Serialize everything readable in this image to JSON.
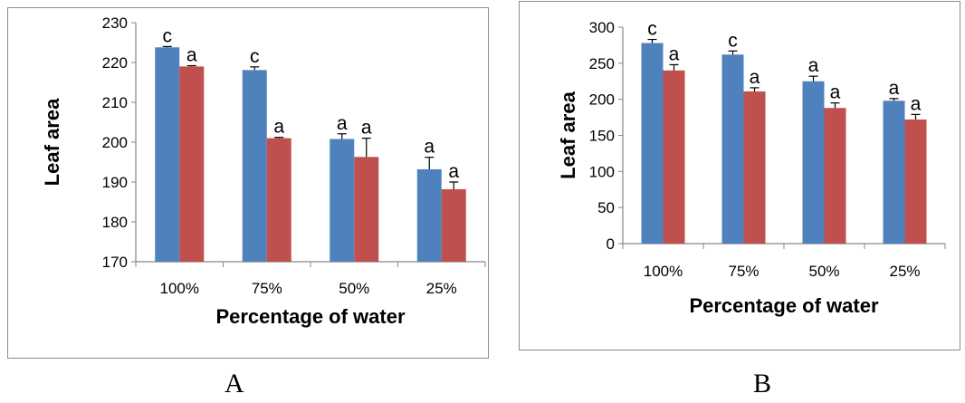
{
  "chart_data": [
    {
      "type": "bar",
      "panel": "A",
      "categories": [
        "100%",
        "75%",
        "50%",
        "25%"
      ],
      "series": [
        {
          "color": "#4f81bd",
          "values": [
            223.8,
            218.1,
            200.8,
            193.2
          ],
          "errors": [
            0.2,
            0.8,
            1.3,
            3.0
          ],
          "letters": [
            "c",
            "c",
            "a",
            "a"
          ]
        },
        {
          "color": "#c0504d",
          "values": [
            219.0,
            201.0,
            196.3,
            188.2
          ],
          "errors": [
            0.2,
            0.2,
            4.7,
            1.8
          ],
          "letters": [
            "a",
            "a",
            "a",
            "a"
          ]
        }
      ],
      "xlabel": "Percentage of water",
      "ylabel": "Leaf area",
      "ylim": [
        170,
        230
      ],
      "yticks": [
        "170",
        "180",
        "190",
        "200",
        "210",
        "220",
        "230"
      ],
      "legend": "none",
      "grid": false
    },
    {
      "type": "bar",
      "panel": "B",
      "categories": [
        "100%",
        "75%",
        "50%",
        "25%"
      ],
      "series": [
        {
          "color": "#4f81bd",
          "values": [
            278,
            262,
            225,
            198
          ],
          "errors": [
            5,
            5,
            7,
            3
          ],
          "letters": [
            "c",
            "c",
            "a",
            "a"
          ]
        },
        {
          "color": "#c0504d",
          "values": [
            240,
            211,
            188,
            172
          ],
          "errors": [
            8,
            5,
            7,
            7
          ],
          "letters": [
            "a",
            "a",
            "a",
            "a"
          ]
        }
      ],
      "xlabel": "Percentage of water",
      "ylabel": "Leaf area",
      "ylim": [
        0,
        300
      ],
      "yticks": [
        "0",
        "50",
        "100",
        "150",
        "200",
        "250",
        "300"
      ],
      "legend": "none",
      "grid": false
    }
  ],
  "panel_labels": {
    "a": "A",
    "b": "B"
  }
}
